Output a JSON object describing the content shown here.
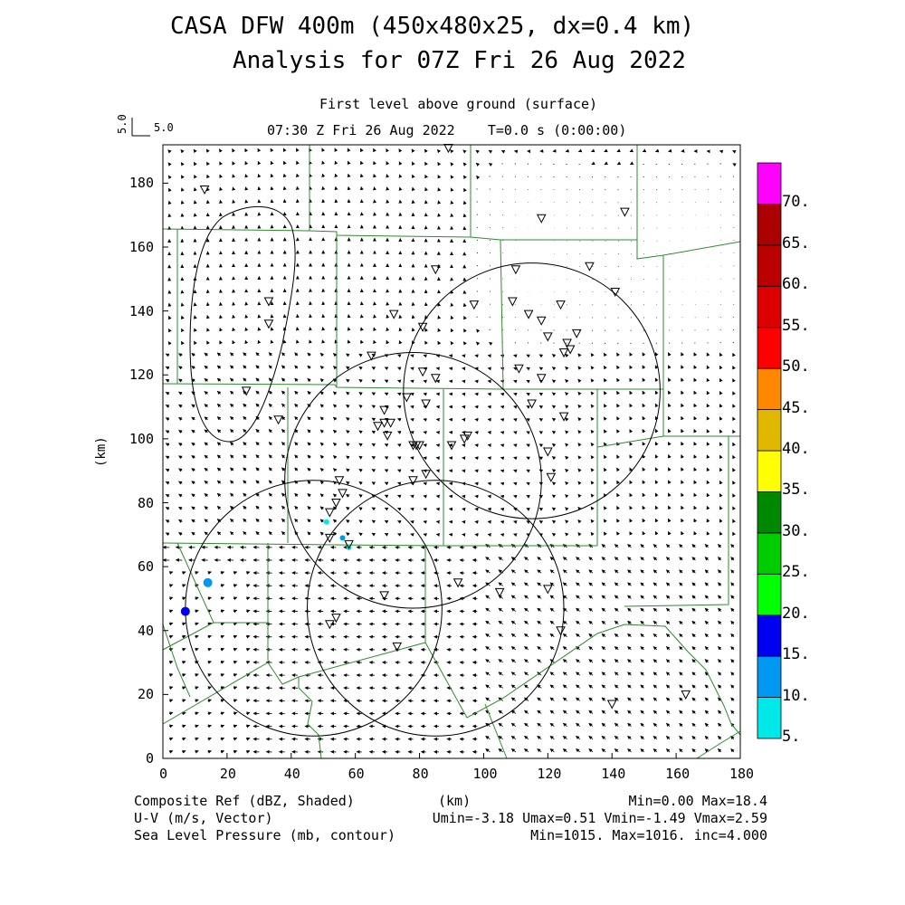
{
  "header": {
    "title_line1": "CASA DFW 400m (450x480x25, dx=0.4 km)",
    "title_line2": "Analysis for 07Z Fri 26 Aug 2022",
    "level": "First level above ground (surface)",
    "time": "07:30 Z Fri 26 Aug 2022    T=0.0 s (0:00:00)",
    "ref_vector_label": "5.0",
    "ref_vector_side_label": "5.0"
  },
  "axes": {
    "x_ticks": [
      "0",
      "20",
      "40",
      "60",
      "80",
      "100",
      "120",
      "140",
      "160",
      "180"
    ],
    "y_ticks": [
      "0",
      "20",
      "40",
      "60",
      "80",
      "100",
      "120",
      "140",
      "160",
      "180"
    ],
    "x_label": "(km)",
    "y_label": "(km)",
    "x_range_km": [
      0,
      180
    ],
    "y_range_km": [
      0,
      192
    ]
  },
  "colorbar": {
    "labels": [
      "5.",
      "10.",
      "15.",
      "20.",
      "25.",
      "30.",
      "35.",
      "40.",
      "45.",
      "50.",
      "55.",
      "60.",
      "65.",
      "70."
    ],
    "colors": [
      "#00e8e8",
      "#0098f0",
      "#0000f0",
      "#00ff00",
      "#00cc00",
      "#008800",
      "#ffff00",
      "#e0b800",
      "#ff8800",
      "#ff0000",
      "#dd0000",
      "#bb0000",
      "#aa0000",
      "#ff00ff"
    ]
  },
  "footer": {
    "field1": "Composite Ref (dBZ, Shaded)",
    "field2": "U-V (m/s, Vector)",
    "field3": "Sea Level Pressure (mb, contour)",
    "units": "(km)",
    "stats1": "Min=0.00 Max=18.4",
    "stats2": "Umin=-3.18 Umax=0.51 Vmin=-1.49 Vmax=2.59",
    "stats3": "Min=1015. Max=1016. inc=4.000"
  },
  "map": {
    "stations_km": [
      [
        13,
        178
      ],
      [
        33,
        143
      ],
      [
        33,
        136
      ],
      [
        26,
        115
      ],
      [
        36,
        106
      ],
      [
        118,
        169
      ],
      [
        144,
        171
      ],
      [
        85,
        153
      ],
      [
        110,
        153
      ],
      [
        133,
        154
      ],
      [
        141,
        146
      ],
      [
        97,
        142
      ],
      [
        109,
        143
      ],
      [
        114,
        139
      ],
      [
        118,
        137
      ],
      [
        124,
        142
      ],
      [
        120,
        132
      ],
      [
        126,
        130
      ],
      [
        127,
        128
      ],
      [
        129,
        133
      ],
      [
        125,
        127
      ],
      [
        65,
        126
      ],
      [
        72,
        139
      ],
      [
        81,
        135
      ],
      [
        81,
        121
      ],
      [
        85,
        119
      ],
      [
        111,
        122
      ],
      [
        118,
        119
      ],
      [
        76,
        113
      ],
      [
        69,
        109
      ],
      [
        82,
        111
      ],
      [
        115,
        111
      ],
      [
        125,
        107
      ],
      [
        67,
        104
      ],
      [
        69,
        105
      ],
      [
        70,
        101
      ],
      [
        71,
        105
      ],
      [
        78,
        98
      ],
      [
        79,
        98
      ],
      [
        80,
        98
      ],
      [
        78,
        87
      ],
      [
        82,
        89
      ],
      [
        90,
        98
      ],
      [
        94,
        100
      ],
      [
        95,
        101
      ],
      [
        120,
        96
      ],
      [
        121,
        88
      ],
      [
        55,
        87
      ],
      [
        56,
        83
      ],
      [
        54,
        80
      ],
      [
        52,
        77
      ],
      [
        52,
        69
      ],
      [
        58,
        67
      ],
      [
        69,
        51
      ],
      [
        92,
        55
      ],
      [
        105,
        52
      ],
      [
        120,
        53
      ],
      [
        124,
        40
      ],
      [
        73,
        35
      ],
      [
        52,
        42
      ],
      [
        54,
        44
      ],
      [
        140,
        17
      ],
      [
        163,
        20
      ],
      [
        89,
        191
      ]
    ],
    "reflectivity_cells": [
      {
        "x": 7,
        "y": 46,
        "dbz": 15
      },
      {
        "x": 14,
        "y": 55,
        "dbz": 12
      },
      {
        "x": 51,
        "y": 74,
        "dbz": 8
      },
      {
        "x": 56,
        "y": 69,
        "dbz": 10
      },
      {
        "x": 58,
        "y": 66,
        "dbz": 8
      }
    ],
    "pressure_contours": [
      {
        "cx": 78,
        "cy": 87,
        "r": 40,
        "label": ""
      },
      {
        "cx": 115,
        "cy": 115,
        "r": 40,
        "label": ""
      },
      {
        "cx": 85,
        "cy": 47,
        "r": 40,
        "label": ""
      },
      {
        "cx": 47,
        "cy": 47,
        "r": 40,
        "label": ""
      }
    ]
  }
}
